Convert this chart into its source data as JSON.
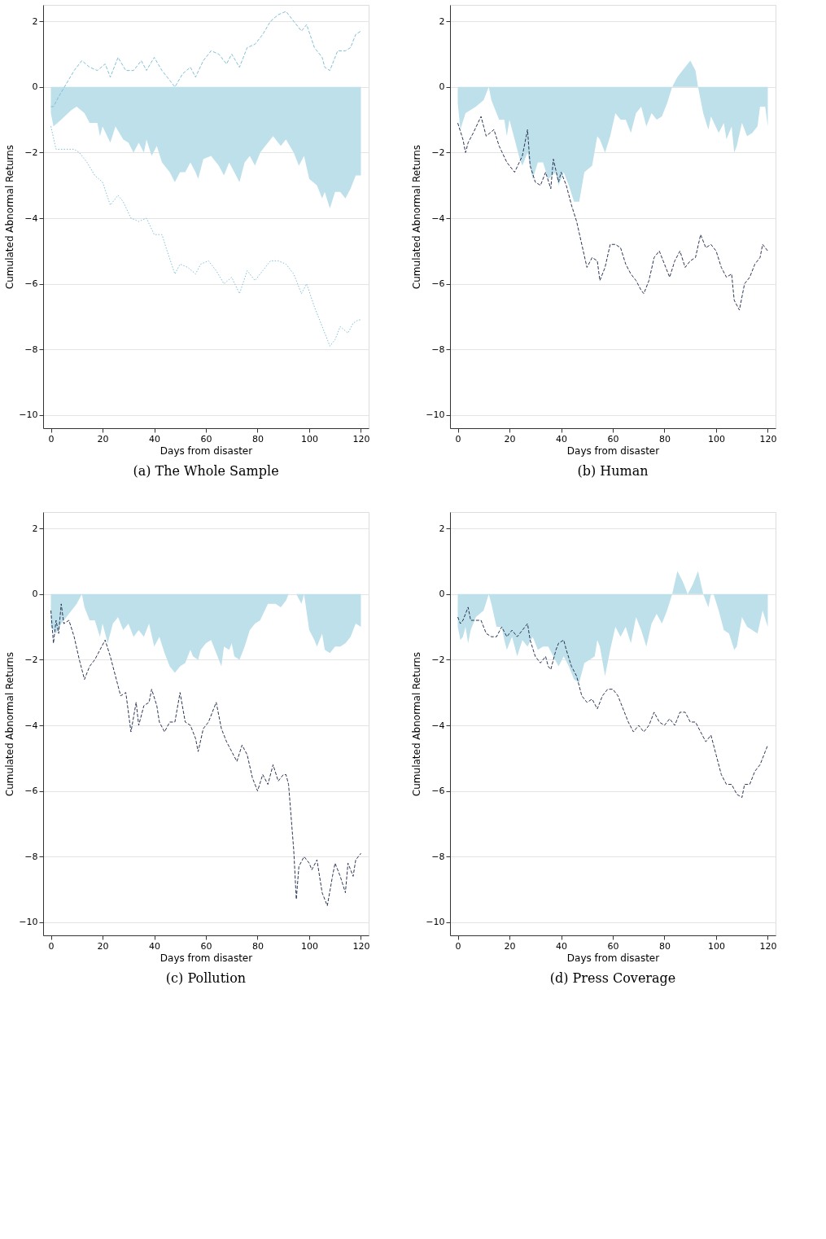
{
  "chart_data": [
    {
      "type": "area",
      "title": "(a) The Whole Sample",
      "xlabel": "Days from disaster",
      "ylabel": "Cumulated Abnormal Returns",
      "xlim": [
        -3,
        123
      ],
      "xticks": [
        0,
        20,
        40,
        60,
        80,
        100,
        120
      ],
      "ylim": [
        -10.4,
        2.5
      ],
      "yticks": [
        -10,
        -8,
        -6,
        -4,
        -2,
        0,
        2
      ],
      "grid": "y",
      "series": [
        {
          "color": "#bde0ea",
          "x": [
            0,
            1,
            4,
            8,
            10,
            13,
            15,
            18,
            19,
            20,
            23,
            25,
            28,
            30,
            32,
            34,
            36,
            37,
            39,
            41,
            43,
            46,
            48,
            50,
            52,
            54,
            56,
            57,
            59,
            62,
            65,
            67,
            69,
            71,
            73,
            75,
            77,
            79,
            81,
            83,
            86,
            89,
            91,
            94,
            96,
            98,
            100,
            103,
            105,
            106,
            108,
            110,
            112,
            114,
            116,
            118,
            120
          ],
          "values": [
            -0.8,
            -1.2,
            -1.0,
            -0.7,
            -0.6,
            -0.8,
            -1.1,
            -1.1,
            -1.5,
            -1.2,
            -1.7,
            -1.2,
            -1.6,
            -1.7,
            -2.0,
            -1.7,
            -2.0,
            -1.6,
            -2.1,
            -1.8,
            -2.3,
            -2.6,
            -2.9,
            -2.6,
            -2.6,
            -2.3,
            -2.6,
            -2.8,
            -2.2,
            -2.1,
            -2.4,
            -2.7,
            -2.3,
            -2.6,
            -2.9,
            -2.3,
            -2.1,
            -2.4,
            -2.0,
            -1.8,
            -1.5,
            -1.8,
            -1.6,
            -2.0,
            -2.4,
            -2.1,
            -2.8,
            -3.0,
            -3.4,
            -3.2,
            -3.7,
            -3.2,
            -3.2,
            -3.4,
            -3.1,
            -2.7,
            -2.7
          ]
        },
        {
          "type": "line",
          "line_style": "dashed",
          "color": "#7fc0d8",
          "x": [
            0,
            1,
            3,
            6,
            9,
            12,
            15,
            18,
            21,
            23,
            26,
            29,
            32,
            35,
            37,
            40,
            43,
            46,
            48,
            51,
            54,
            56,
            59,
            62,
            65,
            68,
            70,
            73,
            76,
            79,
            82,
            85,
            88,
            91,
            94,
            97,
            99,
            102,
            105,
            106,
            108,
            111,
            114,
            116,
            118,
            120
          ],
          "values": [
            -0.6,
            -0.6,
            -0.3,
            0.1,
            0.5,
            0.8,
            0.6,
            0.5,
            0.7,
            0.3,
            0.9,
            0.5,
            0.5,
            0.8,
            0.5,
            0.9,
            0.5,
            0.2,
            0.0,
            0.4,
            0.6,
            0.3,
            0.8,
            1.1,
            1.0,
            0.7,
            1.0,
            0.6,
            1.2,
            1.3,
            1.6,
            2.0,
            2.2,
            2.3,
            2.0,
            1.7,
            1.9,
            1.2,
            0.9,
            0.6,
            0.5,
            1.1,
            1.1,
            1.2,
            1.6,
            1.7
          ]
        },
        {
          "type": "line",
          "line_style": "dotted",
          "color": "#7fc0d8",
          "x": [
            0,
            2,
            5,
            9,
            11,
            14,
            17,
            20,
            23,
            26,
            28,
            31,
            34,
            37,
            40,
            43,
            45,
            48,
            50,
            53,
            56,
            58,
            61,
            64,
            67,
            70,
            73,
            76,
            79,
            82,
            85,
            88,
            91,
            94,
            97,
            99,
            102,
            105,
            108,
            110,
            112,
            115,
            117,
            119,
            120
          ],
          "values": [
            -1.2,
            -1.9,
            -1.9,
            -1.9,
            -2.0,
            -2.3,
            -2.7,
            -2.9,
            -3.6,
            -3.3,
            -3.5,
            -4.0,
            -4.1,
            -4.0,
            -4.5,
            -4.5,
            -5.0,
            -5.7,
            -5.4,
            -5.5,
            -5.7,
            -5.4,
            -5.3,
            -5.6,
            -6.0,
            -5.8,
            -6.3,
            -5.6,
            -5.9,
            -5.6,
            -5.3,
            -5.3,
            -5.4,
            -5.7,
            -6.3,
            -6.0,
            -6.7,
            -7.3,
            -7.9,
            -7.7,
            -7.3,
            -7.5,
            -7.2,
            -7.1,
            -7.1
          ]
        }
      ]
    },
    {
      "type": "area",
      "title": "(b) Human",
      "xlabel": "Days from disaster",
      "ylabel": "Cumulated Abnormal Returns",
      "xlim": [
        -3,
        123
      ],
      "xticks": [
        0,
        20,
        40,
        60,
        80,
        100,
        120
      ],
      "ylim": [
        -10.4,
        2.5
      ],
      "yticks": [
        -10,
        -8,
        -6,
        -4,
        -2,
        0,
        2
      ],
      "grid": "y",
      "series": [
        {
          "color": "#bde0ea",
          "x": [
            0,
            1,
            3,
            5,
            7,
            10,
            12,
            13,
            16,
            18,
            19,
            20,
            22,
            24,
            25,
            27,
            29,
            31,
            33,
            35,
            38,
            39,
            41,
            43,
            45,
            47,
            49,
            52,
            54,
            55,
            57,
            59,
            61,
            63,
            65,
            67,
            69,
            71,
            73,
            75,
            77,
            79,
            81,
            83,
            85,
            87,
            88,
            90,
            92,
            93,
            95,
            97,
            98,
            101,
            103,
            104,
            106,
            107,
            108,
            110,
            112,
            114,
            116,
            117,
            119,
            120
          ],
          "values": [
            -0.5,
            -1.3,
            -0.8,
            -0.7,
            -0.6,
            -0.4,
            0.0,
            -0.4,
            -1.0,
            -1.0,
            -1.5,
            -1.0,
            -1.6,
            -2.2,
            -2.4,
            -2.0,
            -2.8,
            -2.3,
            -2.3,
            -2.8,
            -2.6,
            -3.0,
            -2.6,
            -3.0,
            -3.5,
            -3.5,
            -2.6,
            -2.4,
            -1.5,
            -1.6,
            -2.0,
            -1.5,
            -0.8,
            -1.0,
            -1.0,
            -1.4,
            -0.8,
            -0.6,
            -1.2,
            -0.8,
            -1.0,
            -0.9,
            -0.5,
            0.0,
            0.3,
            0.5,
            0.6,
            0.8,
            0.5,
            0.0,
            -0.8,
            -1.3,
            -0.9,
            -1.4,
            -1.1,
            -1.6,
            -1.2,
            -2.0,
            -1.8,
            -1.1,
            -1.5,
            -1.4,
            -1.2,
            -0.6,
            -0.6,
            -1.2
          ]
        },
        {
          "type": "line",
          "line_style": "dashed",
          "color": "#2b3556",
          "x": [
            0,
            2,
            3,
            4,
            6,
            9,
            11,
            14,
            16,
            19,
            22,
            25,
            27,
            28,
            30,
            32,
            34,
            36,
            37,
            39,
            40,
            42,
            44,
            46,
            48,
            50,
            52,
            54,
            55,
            57,
            59,
            61,
            63,
            65,
            67,
            69,
            71,
            72,
            74,
            76,
            78,
            80,
            82,
            84,
            86,
            88,
            90,
            92,
            94,
            96,
            98,
            100,
            102,
            104,
            106,
            107,
            109,
            111,
            113,
            115,
            117,
            118,
            120
          ],
          "values": [
            -1.1,
            -1.6,
            -2.0,
            -1.7,
            -1.4,
            -0.9,
            -1.5,
            -1.3,
            -1.8,
            -2.3,
            -2.6,
            -2.1,
            -1.3,
            -2.4,
            -2.9,
            -3.0,
            -2.6,
            -3.1,
            -2.2,
            -2.9,
            -2.6,
            -3.0,
            -3.6,
            -4.1,
            -4.8,
            -5.5,
            -5.2,
            -5.3,
            -5.9,
            -5.5,
            -4.8,
            -4.8,
            -4.9,
            -5.4,
            -5.7,
            -5.9,
            -6.2,
            -6.3,
            -5.9,
            -5.2,
            -5.0,
            -5.4,
            -5.8,
            -5.3,
            -5.0,
            -5.5,
            -5.3,
            -5.2,
            -4.5,
            -4.9,
            -4.8,
            -5.0,
            -5.5,
            -5.8,
            -5.7,
            -6.5,
            -6.8,
            -6.0,
            -5.8,
            -5.4,
            -5.2,
            -4.8,
            -5.0
          ]
        }
      ]
    },
    {
      "type": "area",
      "title": "(c) Pollution",
      "xlabel": "Days from disaster",
      "ylabel": "Cumulated Abnormal Returns",
      "xlim": [
        -3,
        123
      ],
      "xticks": [
        0,
        20,
        40,
        60,
        80,
        100,
        120
      ],
      "ylim": [
        -10.4,
        2.5
      ],
      "yticks": [
        -10,
        -8,
        -6,
        -4,
        -2,
        0,
        2
      ],
      "grid": "y",
      "series": [
        {
          "color": "#bde0ea",
          "x": [
            0,
            1,
            2,
            4,
            6,
            8,
            10,
            12,
            13,
            15,
            17,
            19,
            20,
            22,
            24,
            26,
            28,
            30,
            32,
            34,
            36,
            38,
            40,
            42,
            44,
            46,
            48,
            50,
            52,
            54,
            55,
            57,
            58,
            60,
            62,
            64,
            66,
            67,
            69,
            70,
            71,
            73,
            75,
            77,
            79,
            81,
            84,
            87,
            89,
            91,
            92,
            94,
            95,
            97,
            98,
            100,
            102,
            103,
            105,
            106,
            108,
            110,
            112,
            114,
            116,
            118,
            120
          ],
          "values": [
            -1.0,
            -1.1,
            -1.2,
            -0.9,
            -0.7,
            -0.5,
            -0.3,
            0.0,
            -0.4,
            -0.8,
            -0.8,
            -1.3,
            -0.9,
            -1.5,
            -0.9,
            -0.7,
            -1.1,
            -0.9,
            -1.3,
            -1.1,
            -1.3,
            -0.9,
            -1.6,
            -1.3,
            -1.8,
            -2.2,
            -2.4,
            -2.2,
            -2.1,
            -1.7,
            -1.9,
            -2.0,
            -1.7,
            -1.5,
            -1.4,
            -1.8,
            -2.2,
            -1.6,
            -1.7,
            -1.5,
            -1.9,
            -2.0,
            -1.6,
            -1.1,
            -0.9,
            -0.8,
            -0.3,
            -0.3,
            -0.4,
            -0.2,
            0.0,
            0.0,
            0.0,
            -0.3,
            0.0,
            -1.1,
            -1.4,
            -1.6,
            -1.2,
            -1.7,
            -1.8,
            -1.6,
            -1.6,
            -1.5,
            -1.3,
            -0.9,
            -1.0
          ]
        },
        {
          "type": "line",
          "line_style": "dashed",
          "color": "#2b3556",
          "x": [
            0,
            1,
            2,
            3,
            4,
            5,
            7,
            9,
            11,
            13,
            15,
            17,
            19,
            21,
            23,
            25,
            27,
            29,
            31,
            33,
            34,
            36,
            38,
            39,
            41,
            42,
            44,
            46,
            48,
            50,
            52,
            54,
            56,
            57,
            59,
            61,
            63,
            64,
            66,
            68,
            70,
            72,
            74,
            76,
            78,
            80,
            82,
            84,
            86,
            88,
            90,
            91,
            92,
            94,
            95,
            96,
            98,
            100,
            101,
            103,
            105,
            107,
            109,
            110,
            112,
            114,
            115,
            117,
            118,
            120
          ],
          "values": [
            -0.5,
            -1.5,
            -0.8,
            -1.2,
            -0.3,
            -0.9,
            -0.8,
            -1.3,
            -2.0,
            -2.6,
            -2.2,
            -2.0,
            -1.7,
            -1.4,
            -1.9,
            -2.5,
            -3.1,
            -3.0,
            -4.2,
            -3.3,
            -4.0,
            -3.4,
            -3.3,
            -2.9,
            -3.4,
            -3.9,
            -4.2,
            -3.9,
            -3.9,
            -3.0,
            -3.9,
            -4.0,
            -4.4,
            -4.8,
            -4.1,
            -3.9,
            -3.5,
            -3.3,
            -4.1,
            -4.5,
            -4.8,
            -5.1,
            -4.6,
            -4.9,
            -5.6,
            -6.0,
            -5.5,
            -5.8,
            -5.2,
            -5.7,
            -5.5,
            -5.5,
            -5.8,
            -7.8,
            -9.3,
            -8.3,
            -8.0,
            -8.2,
            -8.4,
            -8.1,
            -9.1,
            -9.5,
            -8.6,
            -8.2,
            -8.6,
            -9.1,
            -8.2,
            -8.6,
            -8.1,
            -7.9
          ]
        }
      ]
    },
    {
      "type": "area",
      "title": "(d) Press Coverage",
      "xlabel": "Days from disaster",
      "ylabel": "Cumulated Abnormal Returns",
      "xlim": [
        -3,
        123
      ],
      "xticks": [
        0,
        20,
        40,
        60,
        80,
        100,
        120
      ],
      "ylim": [
        -10.4,
        2.5
      ],
      "yticks": [
        -10,
        -8,
        -6,
        -4,
        -2,
        0,
        2
      ],
      "grid": "y",
      "series": [
        {
          "color": "#bde0ea",
          "x": [
            0,
            1,
            2,
            3,
            4,
            5,
            7,
            10,
            12,
            13,
            15,
            17,
            18,
            19,
            21,
            23,
            25,
            27,
            29,
            31,
            33,
            35,
            37,
            39,
            41,
            43,
            45,
            47,
            49,
            51,
            53,
            54,
            55,
            57,
            59,
            61,
            63,
            65,
            67,
            69,
            71,
            73,
            75,
            77,
            79,
            81,
            83,
            85,
            87,
            89,
            91,
            93,
            95,
            97,
            98,
            99,
            101,
            103,
            105,
            107,
            108,
            110,
            112,
            114,
            116,
            118,
            120
          ],
          "values": [
            -1.0,
            -1.4,
            -1.3,
            -1.0,
            -1.5,
            -1.1,
            -0.7,
            -0.5,
            0.0,
            -0.3,
            -1.0,
            -1.0,
            -1.4,
            -1.7,
            -1.3,
            -1.9,
            -1.4,
            -1.6,
            -1.3,
            -1.7,
            -1.6,
            -1.6,
            -1.9,
            -2.2,
            -1.9,
            -2.2,
            -2.6,
            -2.7,
            -2.1,
            -2.0,
            -1.9,
            -1.4,
            -1.6,
            -2.5,
            -1.7,
            -1.0,
            -1.3,
            -1.0,
            -1.5,
            -0.7,
            -1.1,
            -1.6,
            -0.9,
            -0.6,
            -0.9,
            -0.5,
            0.0,
            0.7,
            0.4,
            0.0,
            0.3,
            0.7,
            0.0,
            -0.4,
            0.0,
            0.0,
            -0.5,
            -1.1,
            -1.2,
            -1.7,
            -1.6,
            -0.7,
            -1.0,
            -1.1,
            -1.2,
            -0.5,
            -1.0
          ]
        },
        {
          "type": "line",
          "line_style": "dashed",
          "color": "#2b3556",
          "x": [
            0,
            1,
            2,
            4,
            5,
            7,
            9,
            11,
            13,
            15,
            17,
            19,
            21,
            23,
            25,
            27,
            28,
            30,
            32,
            34,
            35,
            36,
            38,
            39,
            41,
            42,
            44,
            46,
            48,
            50,
            52,
            54,
            56,
            58,
            60,
            62,
            64,
            66,
            68,
            70,
            72,
            74,
            76,
            78,
            80,
            82,
            84,
            86,
            88,
            90,
            92,
            94,
            96,
            98,
            100,
            102,
            104,
            106,
            108,
            110,
            111,
            113,
            115,
            117,
            119,
            120
          ],
          "values": [
            -0.7,
            -0.9,
            -0.8,
            -0.4,
            -0.8,
            -0.8,
            -0.8,
            -1.2,
            -1.3,
            -1.3,
            -1.0,
            -1.3,
            -1.1,
            -1.3,
            -1.1,
            -0.9,
            -1.4,
            -1.9,
            -2.1,
            -1.9,
            -2.2,
            -2.3,
            -1.7,
            -1.5,
            -1.4,
            -1.7,
            -2.2,
            -2.5,
            -3.1,
            -3.3,
            -3.2,
            -3.5,
            -3.1,
            -2.9,
            -2.9,
            -3.1,
            -3.5,
            -3.9,
            -4.2,
            -4.0,
            -4.2,
            -4.0,
            -3.6,
            -3.9,
            -4.0,
            -3.8,
            -4.0,
            -3.6,
            -3.6,
            -3.9,
            -3.9,
            -4.2,
            -4.5,
            -4.3,
            -4.9,
            -5.5,
            -5.8,
            -5.8,
            -6.1,
            -6.2,
            -5.8,
            -5.8,
            -5.4,
            -5.2,
            -4.8,
            -4.6
          ]
        }
      ]
    }
  ]
}
